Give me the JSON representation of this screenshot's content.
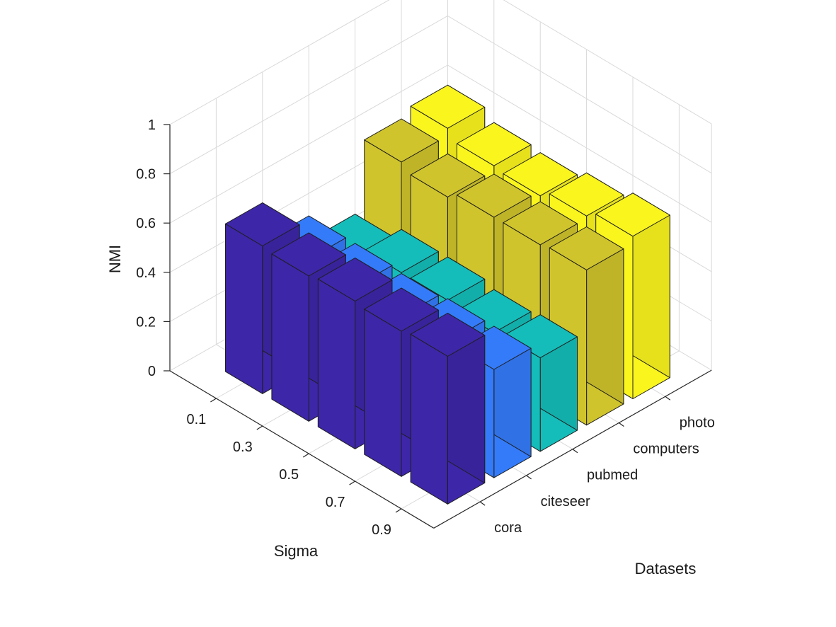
{
  "chart_data": {
    "type": "bar3d",
    "xlabel": "Sigma",
    "ylabel": "Datasets",
    "zlabel": "NMI",
    "sigma_ticks": [
      "0.1",
      "0.3",
      "0.5",
      "0.7",
      "0.9"
    ],
    "dataset_ticks": [
      "cora",
      "citeseer",
      "pubmed",
      "computers",
      "photo"
    ],
    "z_ticks": [
      "0",
      "0.2",
      "0.4",
      "0.6",
      "0.8",
      "1"
    ],
    "zlim": [
      0,
      1
    ],
    "grid": true,
    "series": [
      {
        "name": "cora",
        "color": "#3e26a8",
        "values": [
          0.6,
          0.59,
          0.6,
          0.59,
          0.6
        ]
      },
      {
        "name": "citeseer",
        "color": "#347bfa",
        "values": [
          0.44,
          0.44,
          0.43,
          0.44,
          0.44
        ]
      },
      {
        "name": "pubmed",
        "color": "#14bdb9",
        "values": [
          0.34,
          0.39,
          0.39,
          0.37,
          0.38
        ]
      },
      {
        "name": "computers",
        "color": "#d0c42c",
        "values": [
          0.62,
          0.59,
          0.62,
          0.62,
          0.63
        ]
      },
      {
        "name": "photo",
        "color": "#faf51d",
        "values": [
          0.65,
          0.61,
          0.6,
          0.63,
          0.66
        ]
      }
    ]
  }
}
